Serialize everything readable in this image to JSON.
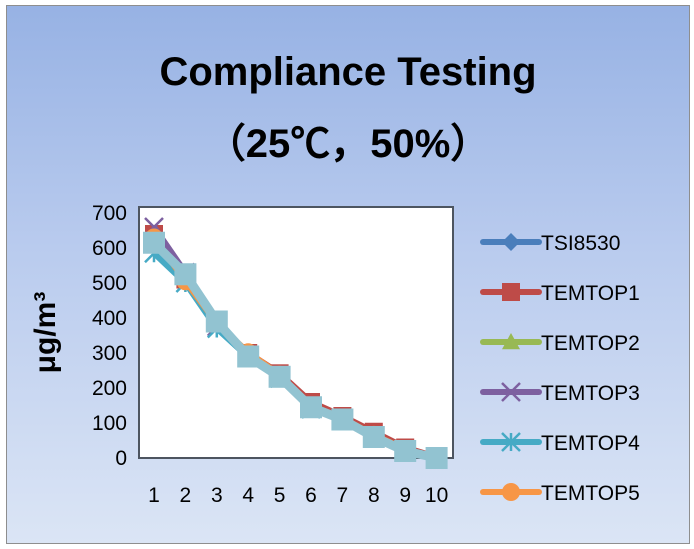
{
  "chart_data": {
    "type": "line",
    "title": "Compliance Testing\n（25℃，50%）",
    "xlabel": "",
    "ylabel": "μg/m³",
    "x": [
      1,
      2,
      3,
      4,
      5,
      6,
      7,
      8,
      9,
      10
    ],
    "ylim": [
      0,
      700
    ],
    "yticks": [
      0,
      100,
      200,
      300,
      400,
      500,
      600,
      700
    ],
    "grid": false,
    "legend": "right",
    "series": [
      {
        "name": "TSI8530",
        "color": "#4a7ebb",
        "marker": "diamond",
        "values": [
          620,
          520,
          390,
          295,
          235,
          150,
          110,
          65,
          25,
          2
        ]
      },
      {
        "name": "TEMTOP1",
        "color": "#be4b48",
        "marker": "square",
        "values": [
          640,
          510,
          385,
          300,
          242,
          160,
          120,
          75,
          30,
          3
        ]
      },
      {
        "name": "TEMTOP2",
        "color": "#98b954",
        "marker": "triangle",
        "values": [
          615,
          515,
          385,
          290,
          235,
          148,
          112,
          65,
          24,
          2
        ]
      },
      {
        "name": "TEMTOP3",
        "color": "#7d60a0",
        "marker": "x",
        "values": [
          660,
          530,
          375,
          292,
          232,
          145,
          110,
          63,
          23,
          2
        ]
      },
      {
        "name": "TEMTOP4",
        "color": "#46aac5",
        "marker": "star",
        "values": [
          585,
          500,
          370,
          288,
          228,
          140,
          108,
          60,
          22,
          1
        ]
      },
      {
        "name": "TEMTOP5",
        "color": "#f79646",
        "marker": "circle",
        "values": [
          630,
          505,
          385,
          302,
          238,
          150,
          114,
          66,
          25,
          2
        ]
      },
      {
        "color": "#92c3d1",
        "marker": "square",
        "values": [
          615,
          525,
          390,
          290,
          232,
          145,
          110,
          60,
          20,
          0
        ]
      }
    ]
  }
}
